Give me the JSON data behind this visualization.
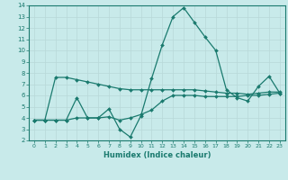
{
  "x": [
    0,
    1,
    2,
    3,
    4,
    5,
    6,
    7,
    8,
    9,
    10,
    11,
    12,
    13,
    14,
    15,
    16,
    17,
    18,
    19,
    20,
    21,
    22,
    23
  ],
  "line_spiky": [
    3.8,
    3.8,
    3.8,
    3.8,
    5.8,
    4.0,
    4.0,
    4.8,
    3.0,
    2.3,
    4.2,
    7.5,
    10.5,
    13.0,
    13.8,
    12.5,
    11.2,
    10.0,
    6.5,
    5.8,
    5.5,
    6.8,
    7.7,
    6.2
  ],
  "line_upper": [
    3.8,
    3.8,
    7.6,
    7.6,
    7.4,
    7.2,
    7.0,
    6.8,
    6.6,
    6.5,
    6.5,
    6.5,
    6.5,
    6.5,
    6.5,
    6.5,
    6.4,
    6.3,
    6.2,
    6.2,
    6.1,
    6.2,
    6.3,
    6.3
  ],
  "line_lower": [
    3.8,
    3.8,
    3.8,
    3.8,
    4.0,
    4.0,
    4.0,
    4.1,
    3.8,
    4.0,
    4.3,
    4.7,
    5.5,
    6.0,
    6.0,
    6.0,
    5.9,
    5.9,
    5.9,
    5.9,
    6.0,
    6.0,
    6.1,
    6.2
  ],
  "line_color": "#1a7a6e",
  "bg_color": "#c8eaea",
  "grid_color": "#b8d8d8",
  "xlabel": "Humidex (Indice chaleur)",
  "xlim": [
    -0.5,
    23.5
  ],
  "ylim": [
    2,
    14
  ],
  "yticks": [
    2,
    3,
    4,
    5,
    6,
    7,
    8,
    9,
    10,
    11,
    12,
    13,
    14
  ],
  "xticks": [
    0,
    1,
    2,
    3,
    4,
    5,
    6,
    7,
    8,
    9,
    10,
    11,
    12,
    13,
    14,
    15,
    16,
    17,
    18,
    19,
    20,
    21,
    22,
    23
  ]
}
